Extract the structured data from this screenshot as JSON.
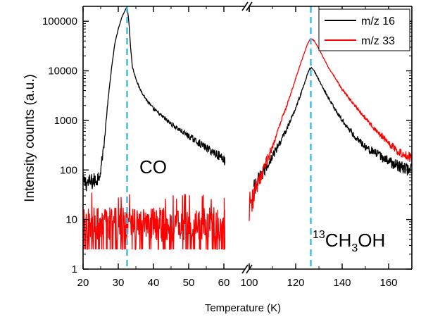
{
  "chart_data": {
    "type": "line",
    "xlabel": "Temperature (K)",
    "ylabel": "Intensity counts (a.u.)",
    "y_scale": "log",
    "ylim": [
      1,
      200000
    ],
    "y_ticks": [
      1,
      10,
      100,
      1000,
      10000,
      100000
    ],
    "y_tick_labels": [
      "1",
      "10",
      "100",
      "1000",
      "10000",
      "100000"
    ],
    "x_axis_broken": true,
    "x_segments": [
      {
        "xlim": [
          20,
          100
        ],
        "ticks": [
          20,
          30,
          40,
          50,
          60,
          100
        ],
        "tick_labels": [
          "20",
          "30",
          "40",
          "50",
          "60",
          "100"
        ]
      },
      {
        "xlim": [
          100,
          170
        ],
        "ticks": [
          100,
          120,
          140,
          160
        ],
        "tick_labels": [
          "",
          "120",
          "140",
          "160"
        ]
      }
    ],
    "reference_lines": [
      {
        "axis": "x",
        "value": 32.5,
        "style": "dashed",
        "color": "#3fbfe6"
      },
      {
        "axis": "x",
        "value": 126.5,
        "style": "dashed",
        "color": "#3fbfe6"
      }
    ],
    "annotations": [
      {
        "text": "CO"
      },
      {
        "sup": "13",
        "parts": [
          "CH",
          "3",
          "OH"
        ]
      }
    ],
    "legend": {
      "position": "top-right"
    },
    "series": [
      {
        "name": "m/z 16",
        "color": "#000000",
        "segments": [
          {
            "x": [
              20,
              22,
              24,
              25,
              26,
              27,
              28,
              29,
              30,
              31,
              32,
              32.5,
              33,
              33.5,
              34,
              35,
              36,
              38,
              40,
              45,
              50,
              55,
              60,
              62
            ],
            "y": [
              55,
              55,
              65,
              100,
              350,
              2200,
              10000,
              35000,
              70000,
              120000,
              170000,
              200000,
              100000,
              30000,
              12000,
              7000,
              4500,
              2600,
              1700,
              850,
              480,
              280,
              170,
              140
            ]
          },
          {
            "x": [
              102,
              104,
              106,
              108,
              110,
              112,
              114,
              116,
              118,
              120,
              122,
              124,
              125,
              126,
              127,
              128,
              129,
              130,
              132,
              134,
              136,
              138,
              140,
              145,
              150,
              155,
              160,
              165,
              170
            ],
            "y": [
              40,
              60,
              90,
              130,
              190,
              280,
              420,
              650,
              1050,
              1800,
              3200,
              6000,
              8500,
              11000,
              11500,
              10000,
              8000,
              6500,
              4300,
              2900,
              2000,
              1400,
              1000,
              500,
              300,
              210,
              150,
              115,
              100
            ]
          }
        ]
      },
      {
        "name": "m/z 33",
        "color": "#ff0000",
        "segments": [
          {
            "x": [
              20,
              25,
              30,
              32.5,
              35,
              40,
              45,
              50,
              55,
              60,
              62
            ],
            "y": [
              12,
              12,
              12,
              12,
              12,
              12,
              12,
              12,
              12,
              12,
              12
            ]
          },
          {
            "x": [
              100,
              101,
              102,
              104,
              106,
              108,
              110,
              112,
              114,
              116,
              118,
              120,
              122,
              124,
              125,
              126,
              127,
              128,
              130,
              132,
              134,
              136,
              138,
              140,
              145,
              150,
              155,
              160,
              165,
              170
            ],
            "y": [
              18,
              22,
              30,
              55,
              95,
              170,
              300,
              560,
              1050,
              1900,
              3600,
              7000,
              13500,
              25000,
              34000,
              42000,
              44000,
              40000,
              28000,
              18000,
              12000,
              8500,
              6000,
              4200,
              2100,
              1100,
              600,
              350,
              220,
              170
            ]
          }
        ]
      }
    ]
  }
}
